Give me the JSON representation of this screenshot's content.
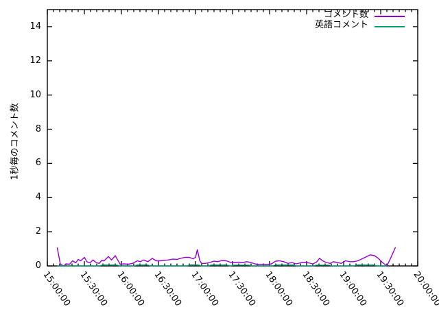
{
  "chart_data": {
    "type": "line",
    "title": "",
    "xlabel": "",
    "ylabel": "1秒毎のコメント数",
    "ylim": [
      0,
      15
    ],
    "x_range_minutes": 300,
    "x_minor_interval_minutes": 5,
    "x_major_interval_minutes": 30,
    "y_ticks": [
      0,
      2,
      4,
      6,
      8,
      10,
      12,
      14
    ],
    "x_tick_labels": [
      "15:00:00",
      "15:30:00",
      "16:00:00",
      "16:30:00",
      "17:00:00",
      "17:30:00",
      "18:00:00",
      "18:30:00",
      "19:00:00",
      "19:30:00",
      "20:00:00"
    ],
    "grid": false,
    "legend_position": "top-right-inside",
    "border_color": "#000000",
    "background_color": "#ffffff",
    "series": [
      {
        "name": "コメント数",
        "color": "#9400D3",
        "points": [
          [
            8,
            1.08
          ],
          [
            10.5,
            0.12
          ],
          [
            13,
            0
          ],
          [
            15.5,
            0.12
          ],
          [
            18,
            0.1
          ],
          [
            20.5,
            0.3
          ],
          [
            23,
            0.18
          ],
          [
            25,
            0.38
          ],
          [
            27,
            0.3
          ],
          [
            30,
            0.5
          ],
          [
            32,
            0.25
          ],
          [
            34.5,
            0.18
          ],
          [
            37,
            0.35
          ],
          [
            39.5,
            0.2
          ],
          [
            42,
            0.15
          ],
          [
            44,
            0.32
          ],
          [
            46,
            0.3
          ],
          [
            49.5,
            0.55
          ],
          [
            52,
            0.35
          ],
          [
            55,
            0.6
          ],
          [
            59,
            0.1
          ],
          [
            62,
            0.12
          ],
          [
            65.5,
            0.1
          ],
          [
            69,
            0.15
          ],
          [
            73,
            0.3
          ],
          [
            75.5,
            0.25
          ],
          [
            78,
            0.35
          ],
          [
            81.5,
            0.25
          ],
          [
            85,
            0.45
          ],
          [
            88,
            0.3
          ],
          [
            91.5,
            0.3
          ],
          [
            95,
            0.33
          ],
          [
            98,
            0.35
          ],
          [
            101.5,
            0.4
          ],
          [
            105,
            0.38
          ],
          [
            108,
            0.45
          ],
          [
            111.5,
            0.5
          ],
          [
            115,
            0.5
          ],
          [
            118,
            0.42
          ],
          [
            120,
            0.5
          ],
          [
            121.5,
            0.95
          ],
          [
            123.5,
            0.3
          ],
          [
            125,
            0.15
          ],
          [
            128,
            0.15
          ],
          [
            131.5,
            0.2
          ],
          [
            135,
            0.28
          ],
          [
            138,
            0.25
          ],
          [
            141.5,
            0.32
          ],
          [
            145,
            0.3
          ],
          [
            148,
            0.22
          ],
          [
            151.5,
            0.2
          ],
          [
            155,
            0.22
          ],
          [
            158,
            0.2
          ],
          [
            161.5,
            0.25
          ],
          [
            165,
            0.2
          ],
          [
            168,
            0.12
          ],
          [
            171.5,
            0.08
          ],
          [
            175,
            0.1
          ],
          [
            178,
            0.08
          ],
          [
            181.5,
            0.12
          ],
          [
            185,
            0.28
          ],
          [
            188,
            0.3
          ],
          [
            191.5,
            0.25
          ],
          [
            195,
            0.15
          ],
          [
            198,
            0.2
          ],
          [
            201.5,
            0.12
          ],
          [
            205,
            0.18
          ],
          [
            208,
            0.22
          ],
          [
            211.5,
            0.18
          ],
          [
            215,
            0.12
          ],
          [
            218,
            0.22
          ],
          [
            220.5,
            0.45
          ],
          [
            223,
            0.3
          ],
          [
            226,
            0.2
          ],
          [
            229,
            0.15
          ],
          [
            231.5,
            0.25
          ],
          [
            235,
            0.2
          ],
          [
            238,
            0.15
          ],
          [
            241.5,
            0.3
          ],
          [
            245,
            0.25
          ],
          [
            248,
            0.25
          ],
          [
            251.5,
            0.3
          ],
          [
            255,
            0.42
          ],
          [
            258,
            0.52
          ],
          [
            261.5,
            0.65
          ],
          [
            265,
            0.6
          ],
          [
            268,
            0.45
          ],
          [
            271.5,
            0.2
          ],
          [
            275,
            0
          ],
          [
            278,
            0.45
          ],
          [
            282,
            1.1
          ]
        ]
      },
      {
        "name": "英語コメント",
        "color": "#009E73",
        "points": [
          [
            8,
            0
          ],
          [
            42,
            0
          ],
          [
            45,
            0.06
          ],
          [
            56,
            0.06
          ],
          [
            59,
            0
          ],
          [
            70,
            0
          ],
          [
            73,
            0.06
          ],
          [
            81,
            0.06
          ],
          [
            84,
            0
          ],
          [
            113,
            0
          ],
          [
            116,
            0.07
          ],
          [
            122,
            0.07
          ],
          [
            125,
            0
          ],
          [
            130,
            0
          ],
          [
            133,
            0.06
          ],
          [
            145,
            0.06
          ],
          [
            148,
            0
          ],
          [
            151,
            0.05
          ],
          [
            163,
            0.05
          ],
          [
            166,
            0
          ],
          [
            182,
            0
          ],
          [
            185,
            0.06
          ],
          [
            199,
            0.06
          ],
          [
            202,
            0
          ],
          [
            215,
            0
          ],
          [
            218,
            0.05
          ],
          [
            228,
            0.05
          ],
          [
            231,
            0
          ],
          [
            248,
            0
          ],
          [
            251,
            0.06
          ],
          [
            264,
            0.06
          ],
          [
            267,
            0
          ],
          [
            275,
            0
          ]
        ]
      }
    ]
  }
}
